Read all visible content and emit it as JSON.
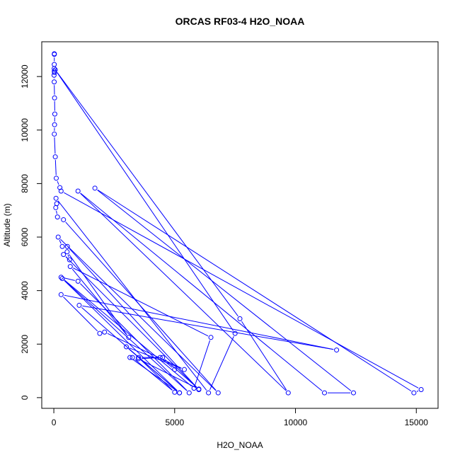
{
  "chart_data": {
    "type": "line",
    "title": "ORCAS RF03-4 H2O_NOAA",
    "xlabel": "H2O_NOAA",
    "ylabel": "Altitude (m)",
    "xlim": [
      -500,
      15900
    ],
    "ylim": [
      -400,
      13300
    ],
    "xticks": [
      0,
      5000,
      10000,
      15000
    ],
    "yticks": [
      0,
      2000,
      4000,
      6000,
      8000,
      10000,
      12000
    ],
    "grid": false,
    "color": "#0000ff",
    "series": [
      {
        "points": [
          [
            20,
            12850
          ],
          [
            20,
            12830
          ],
          [
            18,
            12450
          ],
          [
            15,
            12300
          ],
          [
            20,
            12200
          ],
          [
            25,
            12150
          ],
          [
            10,
            12050
          ],
          [
            15,
            11800
          ],
          [
            30,
            11200
          ],
          [
            40,
            10600
          ],
          [
            30,
            10200
          ],
          [
            20,
            9850
          ],
          [
            60,
            9000
          ],
          [
            100,
            8200
          ],
          [
            250,
            7850
          ],
          [
            300,
            7720
          ],
          [
            15200,
            300
          ],
          [
            14900,
            180
          ],
          [
            1700,
            7830
          ],
          [
            12400,
            180
          ],
          [
            11200,
            180
          ],
          [
            1000,
            7720
          ],
          [
            9700,
            180
          ],
          [
            7700,
            2950
          ],
          [
            60,
            12250
          ],
          [
            7500,
            2400
          ],
          [
            6400,
            180
          ],
          [
            90,
            7450
          ],
          [
            120,
            7250
          ],
          [
            80,
            7100
          ],
          [
            150,
            6750
          ],
          [
            400,
            6650
          ],
          [
            6800,
            180
          ],
          [
            180,
            6000
          ],
          [
            350,
            5650
          ],
          [
            560,
            5650
          ],
          [
            6000,
            300
          ],
          [
            400,
            5350
          ],
          [
            650,
            5150
          ],
          [
            550,
            5450
          ],
          [
            3100,
            2250
          ],
          [
            680,
            4900
          ],
          [
            6500,
            2250
          ],
          [
            5800,
            350
          ],
          [
            300,
            4500
          ],
          [
            1000,
            4350
          ],
          [
            5600,
            180
          ],
          [
            350,
            4450
          ],
          [
            5200,
            180
          ],
          [
            1050,
            3450
          ],
          [
            11700,
            1780
          ],
          [
            300,
            3850
          ],
          [
            1900,
            2400
          ],
          [
            2100,
            2450
          ],
          [
            5400,
            1050
          ],
          [
            3000,
            1900
          ],
          [
            5200,
            180
          ],
          [
            3150,
            1500
          ],
          [
            3250,
            1500
          ],
          [
            5000,
            200
          ],
          [
            3500,
            1500
          ],
          [
            4500,
            1500
          ],
          [
            6000,
            320
          ],
          [
            3500,
            1450
          ],
          [
            4400,
            1500
          ],
          [
            5000,
            1050
          ]
        ]
      }
    ]
  }
}
